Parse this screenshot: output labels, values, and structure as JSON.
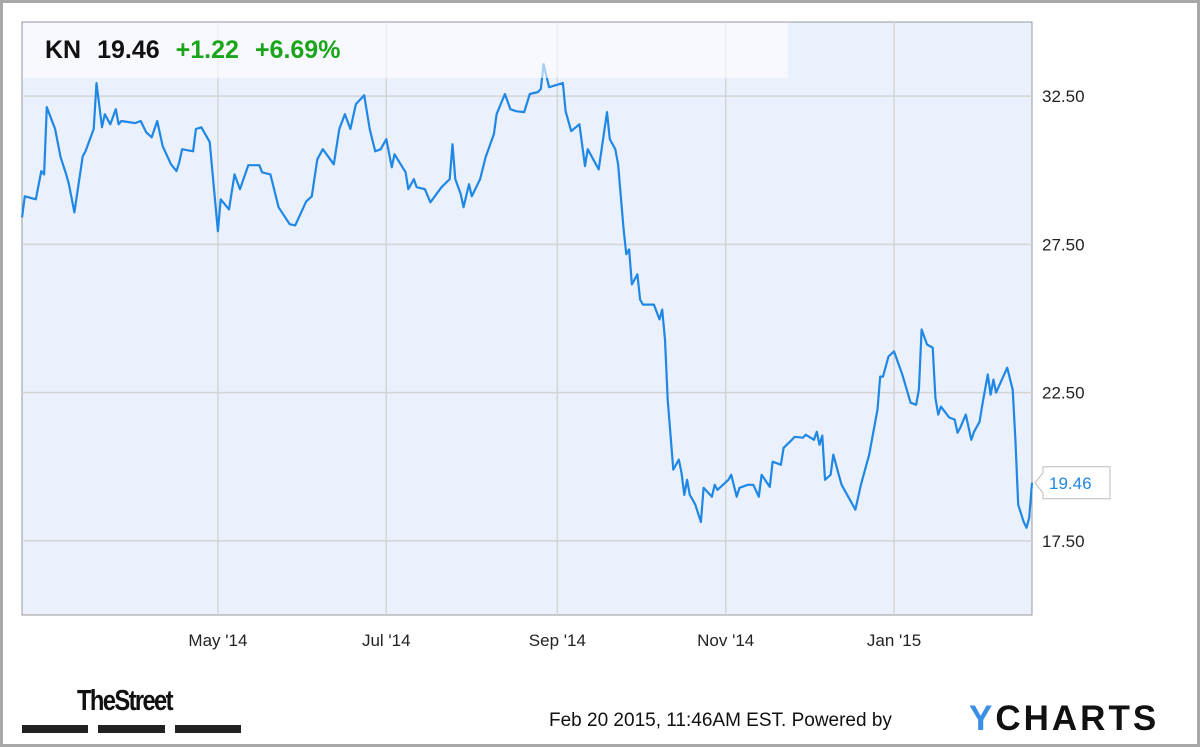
{
  "header": {
    "symbol": "KN",
    "price": "19.46",
    "change": "+1.22",
    "change_pct": "+6.69%"
  },
  "last_price_label": "19.46",
  "footer": {
    "timestamp": "Feb 20 2015, 11:46AM EST.",
    "powered_by": "Powered by",
    "ycharts_logo": "YCHARTS",
    "thestreet_logo": "TheStreet"
  },
  "colors": {
    "line": "#1f87e5",
    "plot_bg": "#eaf1fd",
    "grid": "#d4d4d4",
    "positive": "#1aa51a"
  },
  "chart_data": {
    "type": "line",
    "grid": true,
    "xlim": [
      "2014-02-19",
      "2015-02-20"
    ],
    "ylim": [
      15,
      35
    ],
    "yticks": [
      {
        "value": 17.5,
        "label": "17.50"
      },
      {
        "value": 22.5,
        "label": "22.50"
      },
      {
        "value": 27.5,
        "label": "27.50"
      },
      {
        "value": 32.5,
        "label": "32.50"
      }
    ],
    "xticks": [
      {
        "date": "2014-05-01",
        "label": "May '14"
      },
      {
        "date": "2014-07-01",
        "label": "Jul '14"
      },
      {
        "date": "2014-09-01",
        "label": "Sep '14"
      },
      {
        "date": "2014-11-01",
        "label": "Nov '14"
      },
      {
        "date": "2015-01-01",
        "label": "Jan '15"
      }
    ],
    "series": [
      {
        "points": [
          [
            "2014-02-19",
            28.41
          ],
          [
            "2014-02-20",
            29.12
          ],
          [
            "2014-02-24",
            29.02
          ],
          [
            "2014-02-26",
            29.97
          ],
          [
            "2014-02-27",
            29.86
          ],
          [
            "2014-02-28",
            32.13
          ],
          [
            "2014-03-03",
            31.39
          ],
          [
            "2014-03-05",
            30.44
          ],
          [
            "2014-03-07",
            29.86
          ],
          [
            "2014-03-08",
            29.53
          ],
          [
            "2014-03-10",
            28.58
          ],
          [
            "2014-03-13",
            30.47
          ],
          [
            "2014-03-14",
            30.64
          ],
          [
            "2014-03-17",
            31.39
          ],
          [
            "2014-03-18",
            32.94
          ],
          [
            "2014-03-20",
            31.45
          ],
          [
            "2014-03-21",
            31.89
          ],
          [
            "2014-03-23",
            31.55
          ],
          [
            "2014-03-25",
            32.06
          ],
          [
            "2014-03-26",
            31.55
          ],
          [
            "2014-03-27",
            31.66
          ],
          [
            "2014-04-01",
            31.59
          ],
          [
            "2014-04-03",
            31.66
          ],
          [
            "2014-04-05",
            31.28
          ],
          [
            "2014-04-07",
            31.11
          ],
          [
            "2014-04-09",
            31.66
          ],
          [
            "2014-04-11",
            30.81
          ],
          [
            "2014-04-14",
            30.2
          ],
          [
            "2014-04-16",
            29.97
          ],
          [
            "2014-04-17",
            30.27
          ],
          [
            "2014-04-18",
            30.71
          ],
          [
            "2014-04-22",
            30.64
          ],
          [
            "2014-04-23",
            31.39
          ],
          [
            "2014-04-25",
            31.45
          ],
          [
            "2014-04-28",
            30.95
          ],
          [
            "2014-05-01",
            27.94
          ],
          [
            "2014-05-02",
            29.02
          ],
          [
            "2014-05-05",
            28.68
          ],
          [
            "2014-05-07",
            29.86
          ],
          [
            "2014-05-09",
            29.36
          ],
          [
            "2014-05-12",
            30.17
          ],
          [
            "2014-05-16",
            30.17
          ],
          [
            "2014-05-17",
            29.93
          ],
          [
            "2014-05-20",
            29.86
          ],
          [
            "2014-05-23",
            28.75
          ],
          [
            "2014-05-27",
            28.18
          ],
          [
            "2014-05-29",
            28.14
          ],
          [
            "2014-06-02",
            28.95
          ],
          [
            "2014-06-04",
            29.12
          ],
          [
            "2014-06-06",
            30.37
          ],
          [
            "2014-06-08",
            30.71
          ],
          [
            "2014-06-12",
            30.2
          ],
          [
            "2014-06-14",
            31.39
          ],
          [
            "2014-06-16",
            31.89
          ],
          [
            "2014-06-18",
            31.39
          ],
          [
            "2014-06-20",
            32.23
          ],
          [
            "2014-06-23",
            32.53
          ],
          [
            "2014-06-25",
            31.39
          ],
          [
            "2014-06-27",
            30.64
          ],
          [
            "2014-06-29",
            30.71
          ],
          [
            "2014-07-01",
            31.05
          ],
          [
            "2014-07-03",
            30.1
          ],
          [
            "2014-07-04",
            30.54
          ],
          [
            "2014-07-08",
            29.93
          ],
          [
            "2014-07-09",
            29.36
          ],
          [
            "2014-07-11",
            29.7
          ],
          [
            "2014-07-12",
            29.43
          ],
          [
            "2014-07-15",
            29.36
          ],
          [
            "2014-07-17",
            28.92
          ],
          [
            "2014-07-21",
            29.43
          ],
          [
            "2014-07-24",
            29.7
          ],
          [
            "2014-07-25",
            30.88
          ],
          [
            "2014-07-26",
            29.7
          ],
          [
            "2014-07-28",
            29.19
          ],
          [
            "2014-07-29",
            28.75
          ],
          [
            "2014-07-31",
            29.53
          ],
          [
            "2014-08-01",
            29.12
          ],
          [
            "2014-08-04",
            29.7
          ],
          [
            "2014-08-06",
            30.44
          ],
          [
            "2014-08-09",
            31.22
          ],
          [
            "2014-08-10",
            31.89
          ],
          [
            "2014-08-13",
            32.57
          ],
          [
            "2014-08-15",
            32.06
          ],
          [
            "2014-08-17",
            31.99
          ],
          [
            "2014-08-20",
            31.96
          ],
          [
            "2014-08-22",
            32.57
          ],
          [
            "2014-08-25",
            32.64
          ],
          [
            "2014-08-26",
            32.74
          ],
          [
            "2014-08-27",
            33.58
          ],
          [
            "2014-08-29",
            32.8
          ],
          [
            "2014-09-03",
            32.94
          ],
          [
            "2014-09-04",
            31.99
          ],
          [
            "2014-09-06",
            31.32
          ],
          [
            "2014-09-09",
            31.55
          ],
          [
            "2014-09-11",
            30.14
          ],
          [
            "2014-09-12",
            30.71
          ],
          [
            "2014-09-16",
            30.03
          ],
          [
            "2014-09-19",
            31.96
          ],
          [
            "2014-09-20",
            31.05
          ],
          [
            "2014-09-22",
            30.71
          ],
          [
            "2014-09-23",
            30.2
          ],
          [
            "2014-09-25",
            28.01
          ],
          [
            "2014-09-26",
            27.17
          ],
          [
            "2014-09-27",
            27.33
          ],
          [
            "2014-09-28",
            26.15
          ],
          [
            "2014-09-30",
            26.49
          ],
          [
            "2014-10-01",
            25.64
          ],
          [
            "2014-10-02",
            25.47
          ],
          [
            "2014-10-06",
            25.47
          ],
          [
            "2014-10-08",
            24.97
          ],
          [
            "2014-10-09",
            25.3
          ],
          [
            "2014-10-10",
            24.29
          ],
          [
            "2014-10-11",
            22.26
          ],
          [
            "2014-10-13",
            19.9
          ],
          [
            "2014-10-15",
            20.24
          ],
          [
            "2014-10-16",
            19.8
          ],
          [
            "2014-10-17",
            19.05
          ],
          [
            "2014-10-18",
            19.56
          ],
          [
            "2014-10-19",
            19.05
          ],
          [
            "2014-10-20",
            18.89
          ],
          [
            "2014-10-21",
            18.72
          ],
          [
            "2014-10-23",
            18.14
          ],
          [
            "2014-10-24",
            19.29
          ],
          [
            "2014-10-27",
            18.99
          ],
          [
            "2014-10-28",
            19.39
          ],
          [
            "2014-10-29",
            19.22
          ],
          [
            "2014-11-02",
            19.56
          ],
          [
            "2014-11-03",
            19.73
          ],
          [
            "2014-11-05",
            18.99
          ],
          [
            "2014-11-06",
            19.29
          ],
          [
            "2014-11-09",
            19.39
          ],
          [
            "2014-11-11",
            19.39
          ],
          [
            "2014-11-13",
            18.99
          ],
          [
            "2014-11-14",
            19.73
          ],
          [
            "2014-11-17",
            19.32
          ],
          [
            "2014-11-18",
            20.17
          ],
          [
            "2014-11-21",
            20.07
          ],
          [
            "2014-11-22",
            20.64
          ],
          [
            "2014-11-25",
            20.91
          ],
          [
            "2014-11-26",
            21.01
          ],
          [
            "2014-11-29",
            20.98
          ],
          [
            "2014-11-30",
            21.08
          ],
          [
            "2014-12-03",
            20.91
          ],
          [
            "2014-12-04",
            21.18
          ],
          [
            "2014-12-05",
            20.74
          ],
          [
            "2014-12-06",
            21.05
          ],
          [
            "2014-12-07",
            19.56
          ],
          [
            "2014-12-09",
            19.73
          ],
          [
            "2014-12-10",
            20.41
          ],
          [
            "2014-12-12",
            19.73
          ],
          [
            "2014-12-13",
            19.39
          ],
          [
            "2014-12-18",
            18.55
          ],
          [
            "2014-12-20",
            19.39
          ],
          [
            "2014-12-23",
            20.41
          ],
          [
            "2014-12-26",
            21.93
          ],
          [
            "2014-12-27",
            23.04
          ],
          [
            "2014-12-28",
            23.04
          ],
          [
            "2014-12-30",
            23.72
          ],
          [
            "2015-01-01",
            23.89
          ],
          [
            "2015-01-04",
            23.11
          ],
          [
            "2015-01-07",
            22.16
          ],
          [
            "2015-01-09",
            22.09
          ],
          [
            "2015-01-10",
            22.6
          ],
          [
            "2015-01-11",
            24.63
          ],
          [
            "2015-01-13",
            24.12
          ],
          [
            "2015-01-15",
            24.02
          ],
          [
            "2015-01-16",
            22.33
          ],
          [
            "2015-01-17",
            21.76
          ],
          [
            "2015-01-18",
            22.03
          ],
          [
            "2015-01-21",
            21.66
          ],
          [
            "2015-01-23",
            21.59
          ],
          [
            "2015-01-24",
            21.15
          ],
          [
            "2015-01-25",
            21.32
          ],
          [
            "2015-01-27",
            21.76
          ],
          [
            "2015-01-29",
            20.91
          ],
          [
            "2015-01-30",
            21.18
          ],
          [
            "2015-02-01",
            21.52
          ],
          [
            "2015-02-02",
            22.09
          ],
          [
            "2015-02-04",
            23.11
          ],
          [
            "2015-02-05",
            22.43
          ],
          [
            "2015-02-06",
            22.94
          ],
          [
            "2015-02-07",
            22.5
          ],
          [
            "2015-02-11",
            23.34
          ],
          [
            "2015-02-13",
            22.6
          ],
          [
            "2015-02-14",
            20.91
          ],
          [
            "2015-02-15",
            18.72
          ],
          [
            "2015-02-17",
            18.14
          ],
          [
            "2015-02-18",
            17.94
          ],
          [
            "2015-02-19",
            18.28
          ],
          [
            "2015-02-20",
            19.46
          ]
        ]
      }
    ]
  }
}
